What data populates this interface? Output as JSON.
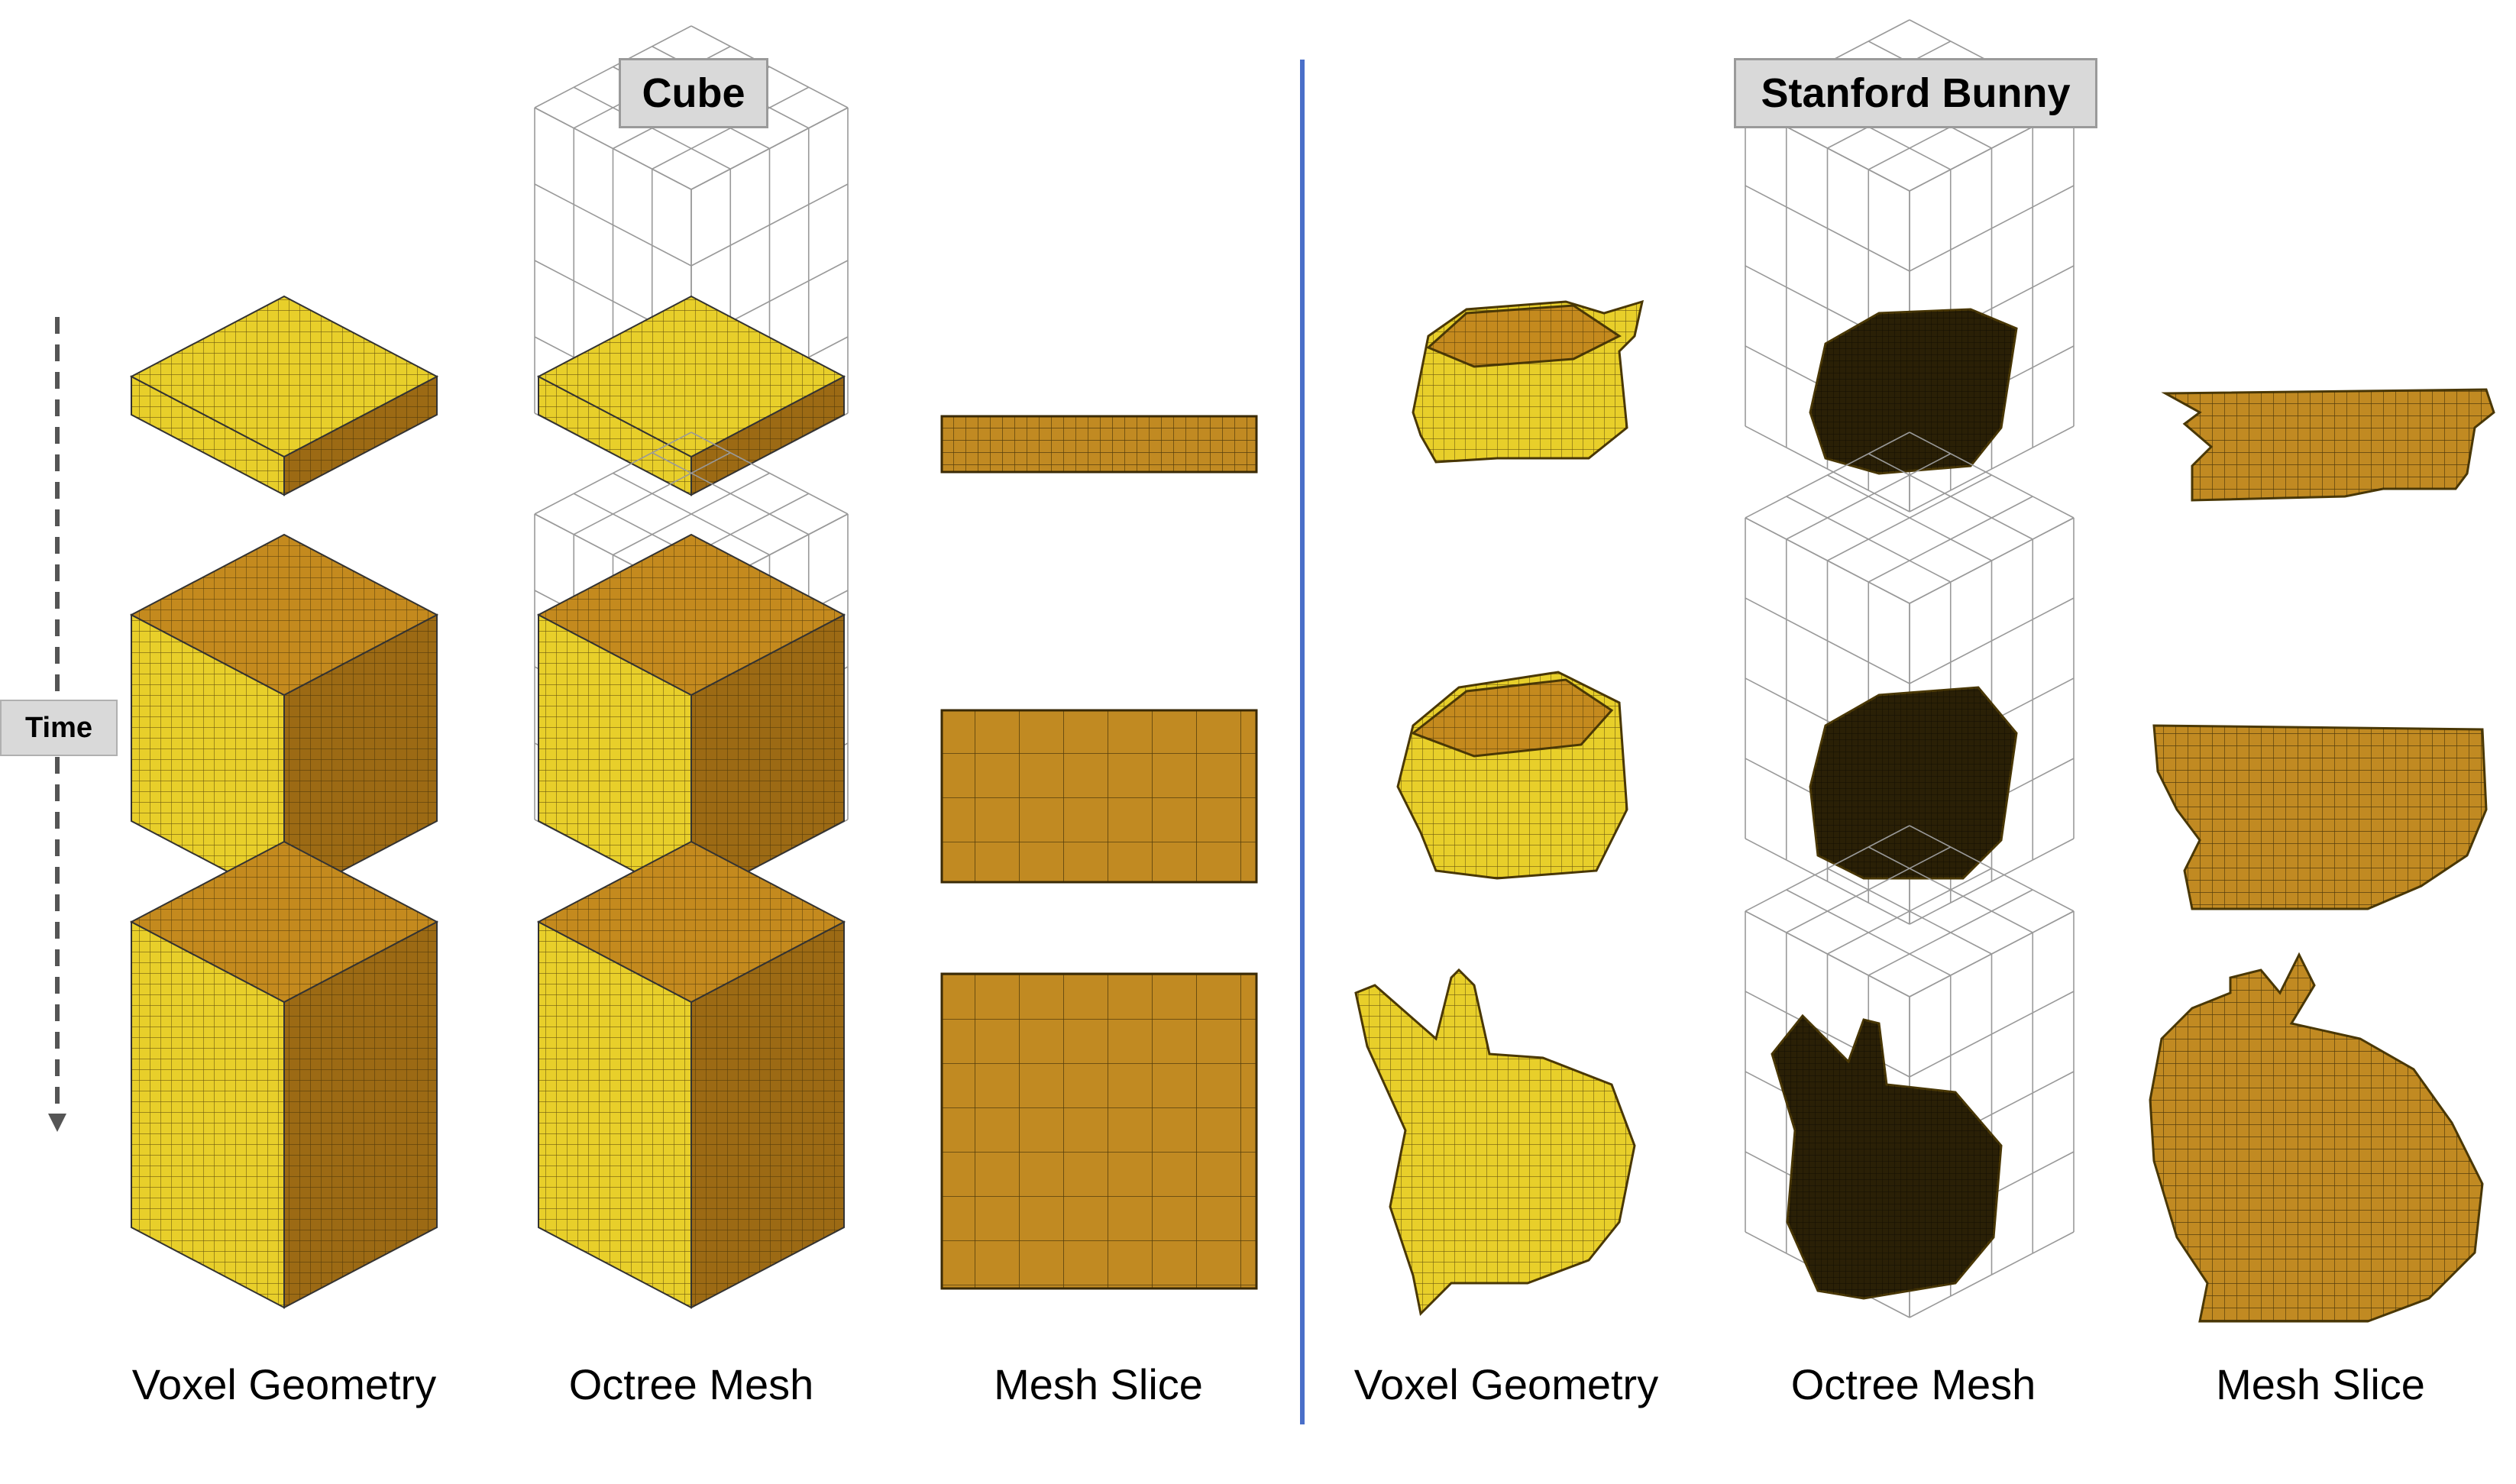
{
  "titles": {
    "left": "Cube",
    "right": "Stanford Bunny"
  },
  "time_label": "Time",
  "columns": [
    "Voxel Geometry",
    "Octree Mesh",
    "Mesh Slice",
    "Voxel Geometry",
    "Octree Mesh",
    "Mesh Slice"
  ],
  "colors": {
    "voxel_top": "#c48a1e",
    "voxel_left": "#e8cf2a",
    "voxel_right": "#9c6a14",
    "grid": "#3a2a06",
    "slice": "#c18a22",
    "divider": "#4a6fc9",
    "wire": "#999999"
  }
}
